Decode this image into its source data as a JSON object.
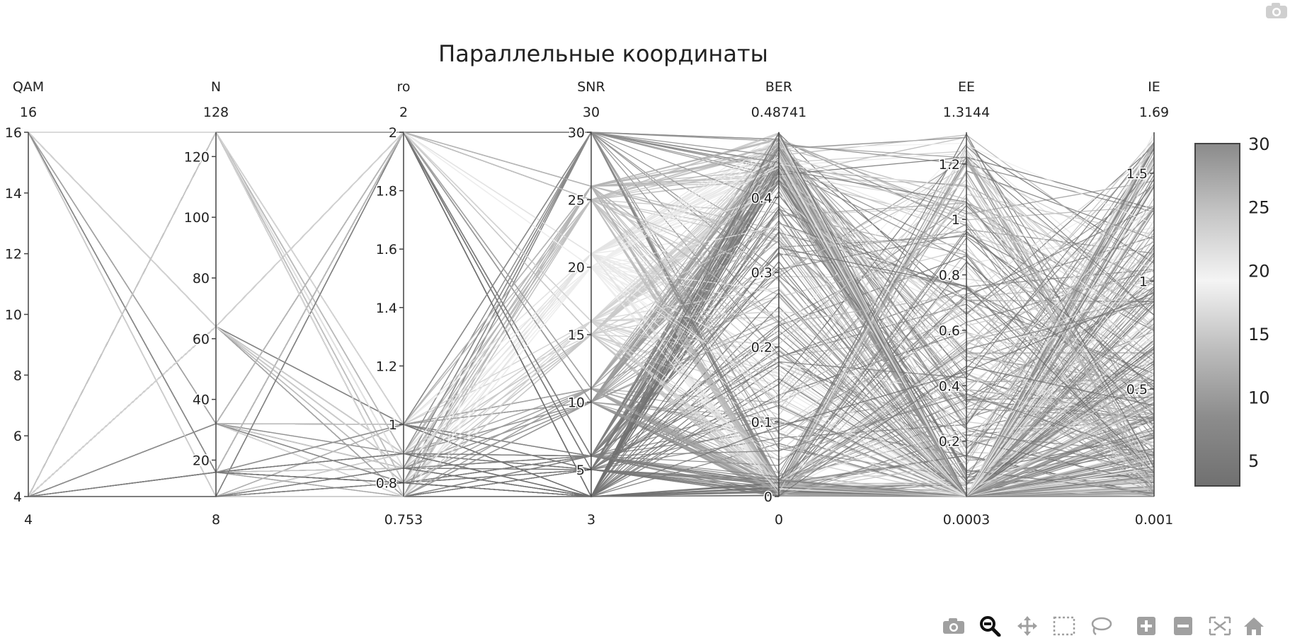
{
  "chart_data": {
    "type": "parallel_coordinates",
    "title": "Параллельные координаты",
    "dimensions": [
      {
        "name": "QAM",
        "range": [
          4,
          16
        ],
        "range_labels": [
          "4",
          "16"
        ],
        "ticks": [
          4,
          6,
          8,
          10,
          12,
          14,
          16
        ],
        "tick_labels": [
          "4",
          "6",
          "8",
          "10",
          "12",
          "14",
          "16"
        ]
      },
      {
        "name": "N",
        "range": [
          8,
          128
        ],
        "range_labels": [
          "8",
          "128"
        ],
        "ticks": [
          20,
          40,
          60,
          80,
          100,
          120
        ],
        "tick_labels": [
          "20",
          "40",
          "60",
          "80",
          "100",
          "120"
        ]
      },
      {
        "name": "ro",
        "range": [
          0.753,
          2
        ],
        "range_labels": [
          "0.753",
          "2"
        ],
        "ticks": [
          0.8,
          1,
          1.2,
          1.4,
          1.6,
          1.8,
          2
        ],
        "tick_labels": [
          "0.8",
          "1",
          "1.2",
          "1.4",
          "1.6",
          "1.8",
          "2"
        ]
      },
      {
        "name": "SNR",
        "range": [
          3,
          30
        ],
        "range_labels": [
          "3",
          "30"
        ],
        "ticks": [
          5,
          10,
          15,
          20,
          25,
          30
        ],
        "tick_labels": [
          "5",
          "10",
          "15",
          "20",
          "25",
          "30"
        ]
      },
      {
        "name": "BER",
        "range": [
          0,
          0.48741
        ],
        "range_labels": [
          "0",
          "0.48741"
        ],
        "ticks": [
          0,
          0.1,
          0.2,
          0.3,
          0.4
        ],
        "tick_labels": [
          "0",
          "0.1",
          "0.2",
          "0.3",
          "0.4"
        ]
      },
      {
        "name": "EE",
        "range": [
          0.0003,
          1.3144
        ],
        "range_labels": [
          "0.0003",
          "1.3144"
        ],
        "ticks": [
          0.2,
          0.4,
          0.6,
          0.8,
          1,
          1.2
        ],
        "tick_labels": [
          "0.2",
          "0.4",
          "0.6",
          "0.8",
          "1",
          "1.2"
        ]
      },
      {
        "name": "IE",
        "range": [
          0.001,
          1.69
        ],
        "range_labels": [
          "0.001",
          "1.69"
        ],
        "ticks": [
          0.5,
          1,
          1.5
        ],
        "tick_labels": [
          "0.5",
          "1",
          "1.5"
        ]
      }
    ],
    "color_dimension": "SNR",
    "colorbar": {
      "range": [
        3,
        30
      ],
      "ticks": [
        5,
        10,
        15,
        20,
        25,
        30
      ],
      "tick_labels": [
        "5",
        "10",
        "15",
        "20",
        "25",
        "30"
      ],
      "colors": [
        "#707070",
        "#8c8c8c",
        "#bdbdbd",
        "#f4f4f4",
        "#c4c4c4",
        "#8a8a8a"
      ]
    },
    "qam_levels": [
      4,
      16
    ],
    "n_levels": [
      8,
      16,
      32,
      64,
      128
    ],
    "ro_levels": [
      0.753,
      0.8,
      0.85,
      0.9,
      1.0,
      2.0
    ],
    "snr_levels": [
      3,
      5,
      6,
      10,
      11,
      15,
      16,
      20,
      21,
      25,
      26,
      30
    ]
  },
  "toolbar": {
    "icons": [
      "camera-icon",
      "zoom-icon",
      "pan-icon",
      "box-select-icon",
      "lasso-icon",
      "zoom-in-icon",
      "zoom-out-icon",
      "autoscale-icon",
      "reset-axes-icon"
    ]
  },
  "colors": {
    "axis": "#444444",
    "text": "#222222",
    "background": "#ffffff"
  }
}
